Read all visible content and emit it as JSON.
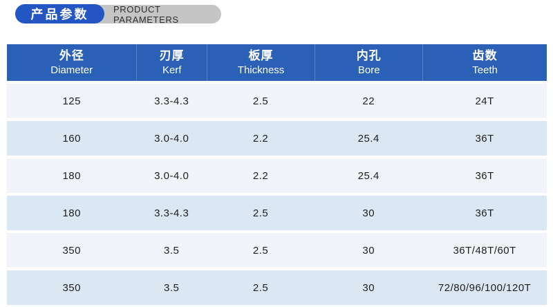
{
  "header": {
    "title_zh": "产品参数",
    "title_en": "PRODUCT PARAMETERS"
  },
  "colors": {
    "pill_blue": "#2356c3",
    "pill_gray": "#c5c5c5",
    "header_blue": "#2a61b6",
    "row_light": "#f1f5f9",
    "row_alt": "#dbe7f2",
    "text_dark": "#1e1e1e"
  },
  "table": {
    "columns": [
      {
        "zh": "外径",
        "en": "Diameter"
      },
      {
        "zh": "刃厚",
        "en": "Kerf"
      },
      {
        "zh": "板厚",
        "en": "Thickness"
      },
      {
        "zh": "内孔",
        "en": "Bore"
      },
      {
        "zh": "齿数",
        "en": "Teeth"
      }
    ],
    "rows": [
      [
        "125",
        "3.3-4.3",
        "2.5",
        "22",
        "24T"
      ],
      [
        "160",
        "3.0-4.0",
        "2.2",
        "25.4",
        "36T"
      ],
      [
        "180",
        "3.0-4.0",
        "2.2",
        "25.4",
        "36T"
      ],
      [
        "180",
        "3.3-4.3",
        "2.5",
        "30",
        "36T"
      ],
      [
        "350",
        "3.5",
        "2.5",
        "30",
        "36T/48T/60T"
      ],
      [
        "350",
        "3.5",
        "2.5",
        "30",
        "72/80/96/100/120T"
      ]
    ]
  }
}
